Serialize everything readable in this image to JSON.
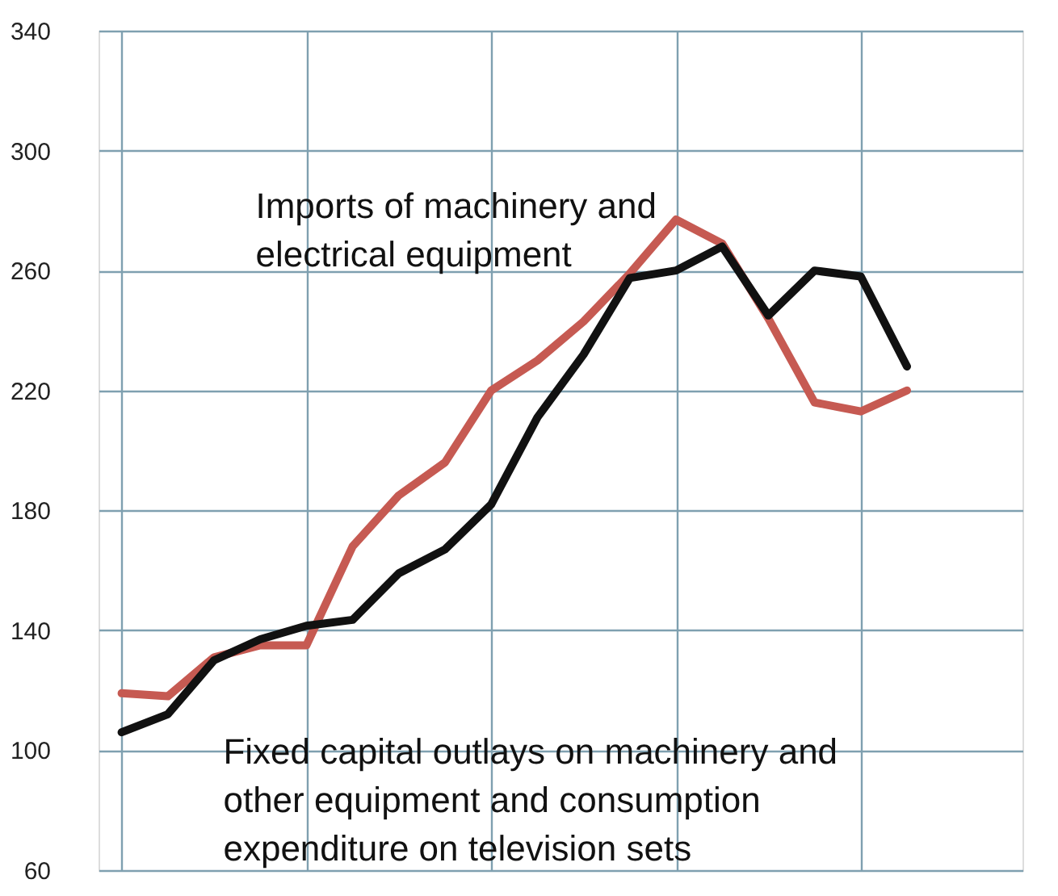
{
  "chart_data": {
    "type": "line",
    "categories": [
      null,
      null,
      null,
      null,
      null,
      null,
      null,
      null,
      null,
      null,
      null,
      null,
      null,
      null,
      null,
      null,
      null,
      null,
      null,
      null
    ],
    "series": [
      {
        "color": "#c65a52",
        "values": [
          119,
          118,
          131,
          135,
          135,
          168,
          185,
          196,
          220,
          230,
          243,
          259,
          277,
          269,
          244,
          216,
          213,
          220,
          null,
          null
        ]
      },
      {
        "color": "#111111",
        "values": [
          106,
          112,
          130,
          137,
          141.5,
          143.5,
          159,
          167,
          182,
          211,
          232,
          257.5,
          260,
          268,
          245,
          260,
          258,
          228,
          null,
          null
        ]
      }
    ],
    "ylim": [
      60,
      340
    ],
    "yticks": [
      60,
      100,
      140,
      180,
      220,
      260,
      300,
      340
    ],
    "grid": true,
    "tick_labels": "y",
    "line_style": "solid",
    "annotations": [
      "Imports of  machinery and\nelectrical equipment",
      "Fixed capital outlays on machinery and\nother equipment and consumption\nexpenditure on television sets"
    ]
  }
}
